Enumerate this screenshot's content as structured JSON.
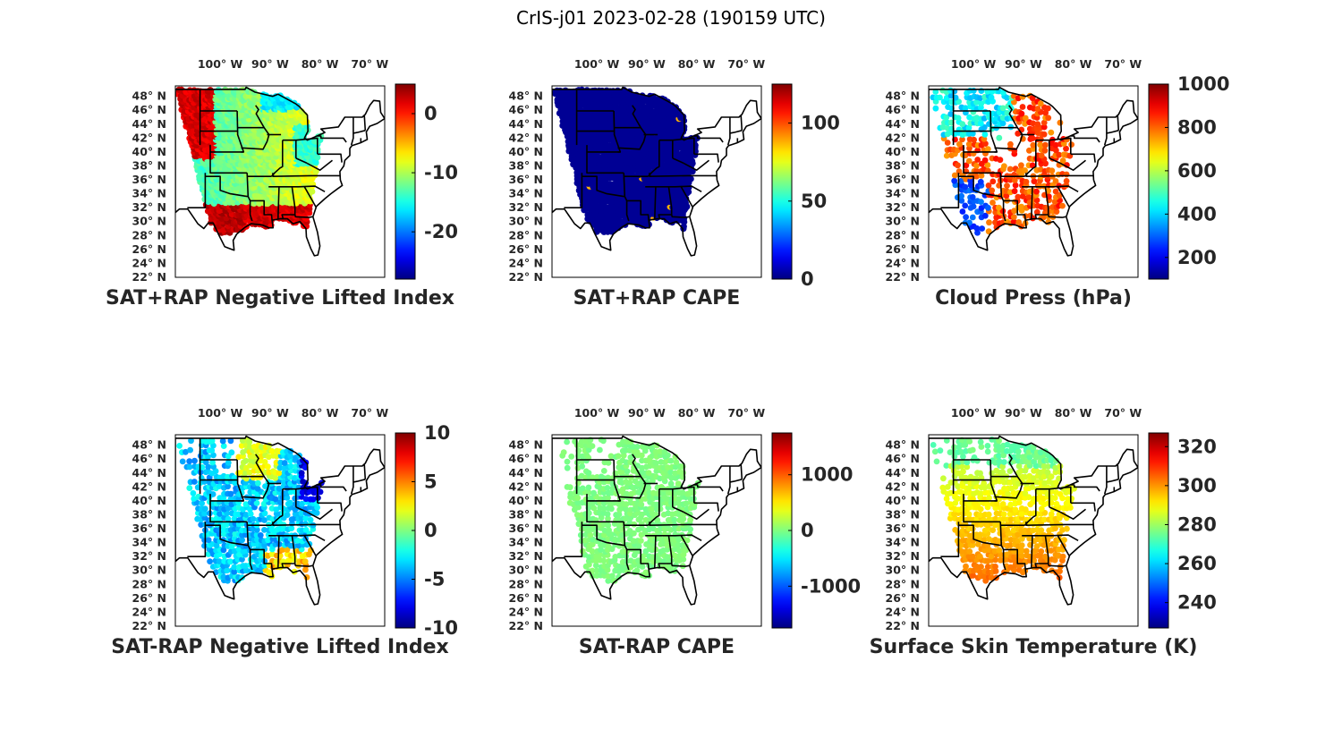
{
  "figure": {
    "title": "CrIS-j01 2023-02-28 (190159 UTC)"
  },
  "map_axes": {
    "lon_ticks": [
      "100",
      "90",
      "80",
      "70"
    ],
    "lon_suffix": "W",
    "lat_ticks": [
      "48",
      "46",
      "44",
      "42",
      "40",
      "38",
      "36",
      "34",
      "32",
      "30",
      "28",
      "26",
      "24",
      "22"
    ],
    "lat_suffix": "N",
    "degree_mark": "°",
    "lon_range": [
      -109,
      -67
    ],
    "lat_range": [
      22,
      49.5
    ]
  },
  "colormap": "jet",
  "panels": [
    {
      "id": "sat-rap-plus-nli",
      "title": "SAT+RAP Negative Lifted Index",
      "colorbar": {
        "ticks": [
          "0",
          "-10",
          "-20"
        ],
        "tick_values": [
          0,
          -10,
          -20
        ],
        "range": [
          -28,
          5
        ]
      },
      "field": "nli_plus"
    },
    {
      "id": "sat-rap-plus-cape",
      "title": "SAT+RAP CAPE",
      "colorbar": {
        "ticks": [
          "100",
          "50",
          "0"
        ],
        "tick_values": [
          100,
          50,
          0
        ],
        "range": [
          0,
          125
        ]
      },
      "field": "cape_plus"
    },
    {
      "id": "cloud-press",
      "title": "Cloud Press (hPa)",
      "colorbar": {
        "ticks": [
          "1000",
          "800",
          "600",
          "400",
          "200"
        ],
        "tick_values": [
          1000,
          800,
          600,
          400,
          200
        ],
        "range": [
          100,
          1000
        ]
      },
      "field": "cloud"
    },
    {
      "id": "sat-rap-minus-nli",
      "title": "SAT-RAP Negative Lifted Index",
      "colorbar": {
        "ticks": [
          "10",
          "5",
          "0",
          "-5",
          "-10"
        ],
        "tick_values": [
          10,
          5,
          0,
          -5,
          -10
        ],
        "range": [
          -10,
          10
        ]
      },
      "field": "nli_minus"
    },
    {
      "id": "sat-rap-minus-cape",
      "title": "SAT-RAP CAPE",
      "colorbar": {
        "ticks": [
          "1000",
          "0",
          "-1000"
        ],
        "tick_values": [
          1000,
          0,
          -1000
        ],
        "range": [
          -1750,
          1750
        ]
      },
      "field": "cape_minus"
    },
    {
      "id": "skin-temp",
      "title": "Surface Skin Temperature (K)",
      "colorbar": {
        "ticks": [
          "320",
          "300",
          "280",
          "260",
          "240"
        ],
        "tick_values": [
          320,
          300,
          280,
          260,
          240
        ],
        "range": [
          227,
          327
        ]
      },
      "field": "skin"
    }
  ]
}
